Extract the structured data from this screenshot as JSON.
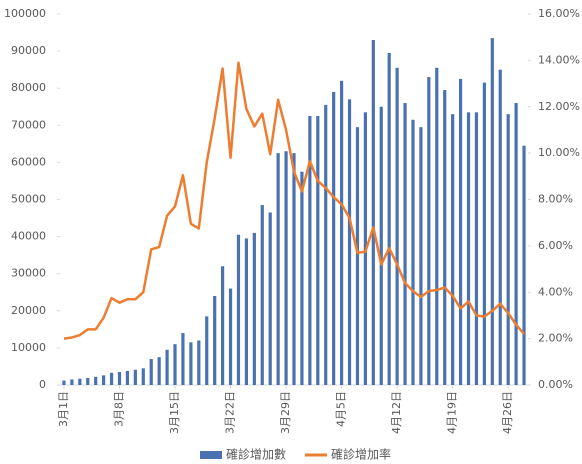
{
  "chart_data": {
    "type": "bar_line",
    "categories": [
      "3月1日",
      null,
      null,
      null,
      null,
      null,
      null,
      "3月8日",
      null,
      null,
      null,
      null,
      null,
      null,
      "3月15日",
      null,
      null,
      null,
      null,
      null,
      null,
      "3月22日",
      null,
      null,
      null,
      null,
      null,
      null,
      "3月29日",
      null,
      null,
      null,
      null,
      null,
      null,
      "4月5日",
      null,
      null,
      null,
      null,
      null,
      null,
      "4月12日",
      null,
      null,
      null,
      null,
      null,
      null,
      "4月19日",
      null,
      null,
      null,
      null,
      null,
      null,
      "4月26日",
      null,
      null
    ],
    "series": [
      {
        "name": "確診增加數",
        "type": "bar",
        "color": "#4a72b0",
        "values": [
          1200,
          1500,
          1700,
          1900,
          2200,
          2600,
          3300,
          3500,
          3800,
          4100,
          4500,
          7000,
          7500,
          9500,
          11000,
          14000,
          11500,
          12000,
          18500,
          24000,
          32000,
          26000,
          40500,
          39500,
          41000,
          48500,
          46500,
          62500,
          63000,
          62500,
          57500,
          72500,
          72500,
          75500,
          79000,
          82000,
          77000,
          69500,
          73500,
          93000,
          75000,
          89500,
          85500,
          76000,
          71500,
          69500,
          83000,
          85500,
          79500,
          73000,
          82500,
          73500,
          73500,
          81500,
          93500,
          85000,
          73000,
          76000,
          64500
        ]
      },
      {
        "name": "確診增加率",
        "type": "line",
        "axis": "y2",
        "color": "#ed7d31",
        "values": [
          2.0,
          2.05,
          2.15,
          2.4,
          2.4,
          2.9,
          3.75,
          3.55,
          3.7,
          3.7,
          4.0,
          5.85,
          5.95,
          7.3,
          7.7,
          9.05,
          6.95,
          6.75,
          9.6,
          11.5,
          13.65,
          9.8,
          13.9,
          11.9,
          11.15,
          11.7,
          9.95,
          12.3,
          11.0,
          9.2,
          8.35,
          9.65,
          8.8,
          8.5,
          8.1,
          7.8,
          7.2,
          5.7,
          5.75,
          6.8,
          5.2,
          5.9,
          5.2,
          4.4,
          4.05,
          3.8,
          4.05,
          4.1,
          4.2,
          3.85,
          3.3,
          3.6,
          3.0,
          2.95,
          3.2,
          3.5,
          3.1,
          2.6,
          2.2
        ]
      }
    ],
    "ylim": [
      0,
      100000
    ],
    "yticks": [
      0,
      10000,
      20000,
      30000,
      40000,
      50000,
      60000,
      70000,
      80000,
      90000,
      100000
    ],
    "y2lim": [
      0,
      16
    ],
    "y2ticks": [
      {
        "value": 0,
        "label": "0.00%"
      },
      {
        "value": 2,
        "label": "2.00%"
      },
      {
        "value": 4,
        "label": "4.00%"
      },
      {
        "value": 6,
        "label": "6.00%"
      },
      {
        "value": 8,
        "label": "8.00%"
      },
      {
        "value": 10,
        "label": "10.00%"
      },
      {
        "value": 12,
        "label": "12.00%"
      },
      {
        "value": 14,
        "label": "14.00%"
      },
      {
        "value": 16,
        "label": "16.00%"
      }
    ],
    "legend": "bottom"
  }
}
